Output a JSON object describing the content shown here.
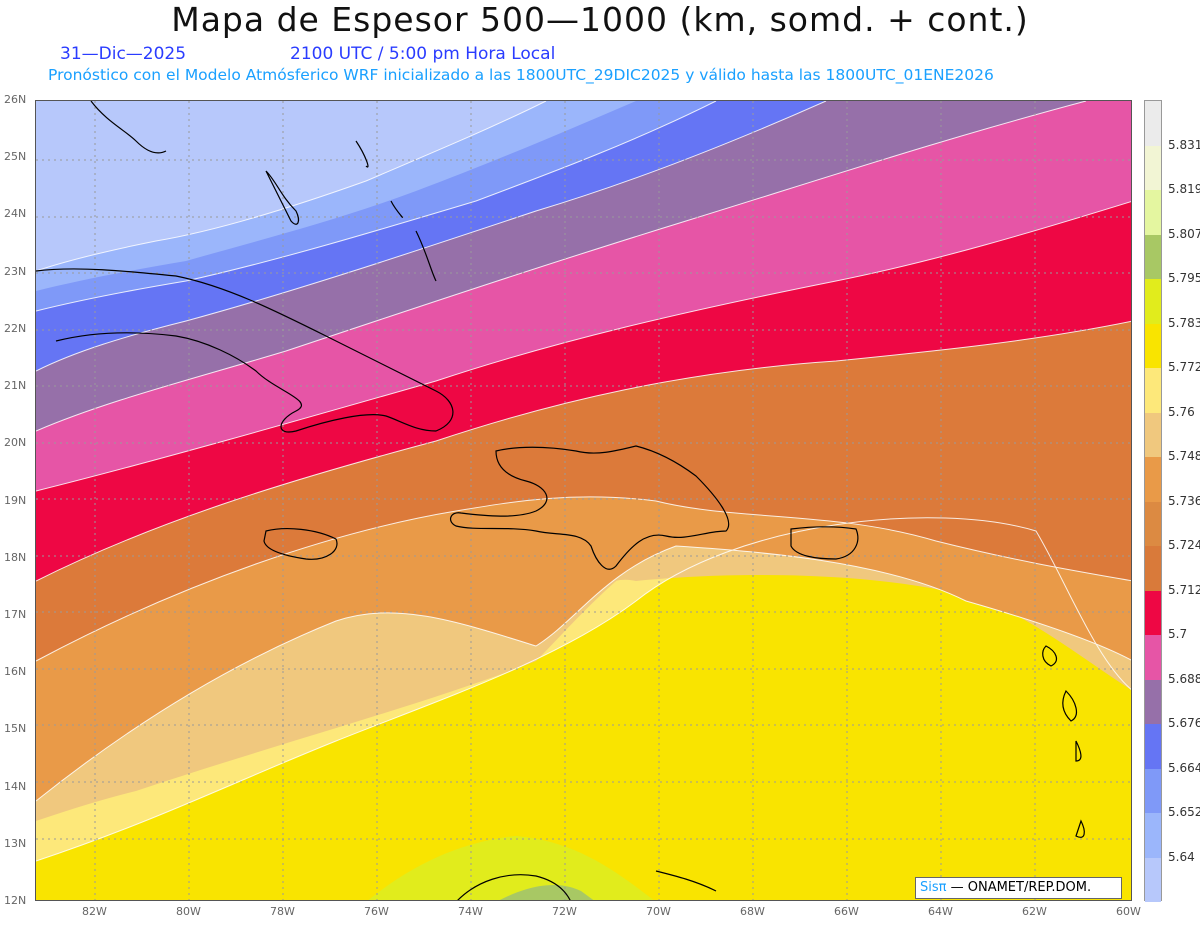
{
  "header": {
    "title": "Mapa de Espesor 500—1000 (km, somd. + cont.)",
    "date": "31—Dic—2025",
    "time": "2100 UTC / 5:00 pm Hora Local",
    "forecast_note": "Pronóstico con el Modelo Atmósferico WRF inicializado a las 1800UTC_29DIC2025 y válido hasta las  1800UTC_01ENE2026"
  },
  "map": {
    "lat_labels": [
      "26N",
      "25N",
      "24N",
      "23N",
      "22N",
      "21N",
      "20N",
      "19N",
      "18N",
      "17N",
      "16N",
      "15N",
      "14N",
      "13N",
      "12N"
    ],
    "lon_labels": [
      "82W",
      "80W",
      "78W",
      "76W",
      "74W",
      "72W",
      "70W",
      "68W",
      "66W",
      "64W",
      "62W",
      "60W"
    ],
    "contour_band_colors": [
      "#b7c8fb",
      "#9bb6fb",
      "#7f99f8",
      "#6575f4",
      "#9670a9",
      "#e655a6",
      "#ee0744",
      "#dc7a3a",
      "#e99a48",
      "#f0c87e",
      "#fde87a",
      "#f9e400",
      "#e1ec1c",
      "#a8c864"
    ]
  },
  "colorbar": {
    "labels": [
      "5.831",
      "5.819",
      "5.807",
      "5.795",
      "5.783",
      "5.772",
      "5.76",
      "5.748",
      "5.736",
      "5.724",
      "5.712",
      "5.7",
      "5.688",
      "5.676",
      "5.664",
      "5.652",
      "5.64"
    ],
    "colors": [
      "#ebebeb",
      "#f2f5d4",
      "#e4f6a0",
      "#a8c864",
      "#e1ec1c",
      "#f9e400",
      "#fde87a",
      "#f0c87e",
      "#e99a48",
      "#dc8a42",
      "#d97a3a",
      "#ee0744",
      "#e655a6",
      "#9670a9",
      "#6575f4",
      "#7f99f8",
      "#9bb6fb",
      "#b7c8fb"
    ]
  },
  "credit": {
    "sis": "Sisπ",
    "rest": "— ONAMET/REP.DOM."
  }
}
